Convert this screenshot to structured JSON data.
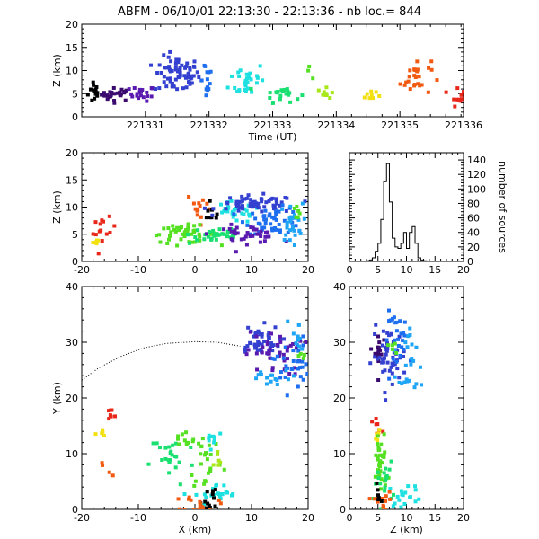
{
  "title": "ABFM - 06/10/01 22:13:30 - 22:13:36 - nb loc.=    844",
  "colors": {
    "palette": [
      "#000000",
      "#3b0a6e",
      "#5a1ab0",
      "#3340d0",
      "#1e6ff0",
      "#1fa5f5",
      "#1de0e0",
      "#19e070",
      "#55e022",
      "#a8e81a",
      "#f2e010",
      "#f4a810",
      "#f25a12",
      "#e8261a"
    ]
  },
  "chart_data": [
    {
      "name": "time-height",
      "type": "scatter",
      "xlabel": "Time (UT)",
      "ylabel": "Z (km)",
      "xlim": [
        221330,
        221336
      ],
      "ylim": [
        0,
        20
      ],
      "xticks": [
        "221331",
        "221332",
        "221333",
        "221334",
        "221335",
        "221336"
      ],
      "yticks": [
        "0",
        "5",
        "10",
        "15",
        "20"
      ],
      "clusters": [
        {
          "x": 221330.2,
          "y": 5.5,
          "sx": 0.05,
          "sy": 1.4,
          "n": 14,
          "c": 0
        },
        {
          "x": 221330.55,
          "y": 4.8,
          "sx": 0.12,
          "sy": 0.7,
          "n": 24,
          "c": 1
        },
        {
          "x": 221330.95,
          "y": 5.0,
          "sx": 0.1,
          "sy": 0.8,
          "n": 20,
          "c": 2
        },
        {
          "x": 221331.5,
          "y": 9.0,
          "sx": 0.18,
          "sy": 2.0,
          "n": 70,
          "c": 3
        },
        {
          "x": 221331.95,
          "y": 8.5,
          "sx": 0.06,
          "sy": 2.3,
          "n": 14,
          "c": 4
        },
        {
          "x": 221332.6,
          "y": 8.0,
          "sx": 0.14,
          "sy": 2.0,
          "n": 30,
          "c": 6
        },
        {
          "x": 221333.15,
          "y": 5.0,
          "sx": 0.14,
          "sy": 0.9,
          "n": 22,
          "c": 7
        },
        {
          "x": 221333.55,
          "y": 9.5,
          "sx": 0.03,
          "sy": 0.6,
          "n": 3,
          "c": 8
        },
        {
          "x": 221333.85,
          "y": 5.0,
          "sx": 0.07,
          "sy": 0.6,
          "n": 10,
          "c": 9
        },
        {
          "x": 221334.55,
          "y": 4.8,
          "sx": 0.07,
          "sy": 0.8,
          "n": 8,
          "c": 10
        },
        {
          "x": 221335.25,
          "y": 8.5,
          "sx": 0.12,
          "sy": 2.0,
          "n": 26,
          "c": 12
        },
        {
          "x": 221335.9,
          "y": 5.0,
          "sx": 0.06,
          "sy": 1.3,
          "n": 10,
          "c": 13
        }
      ]
    },
    {
      "name": "x-z",
      "type": "scatter",
      "xlabel": "",
      "ylabel": "Z (km)",
      "xlim": [
        -20,
        20
      ],
      "ylim": [
        0,
        20
      ],
      "xticks": [
        "-20",
        "-10",
        "0",
        "10",
        "20"
      ],
      "yticks": [
        "0",
        "5",
        "10",
        "15",
        "20"
      ],
      "clusters": [
        {
          "x": -16,
          "y": 5.5,
          "sx": 1.0,
          "sy": 1.2,
          "n": 14,
          "c": 13
        },
        {
          "x": -17.5,
          "y": 3.5,
          "sx": 0.5,
          "sy": 0.5,
          "n": 5,
          "c": 10
        },
        {
          "x": 1,
          "y": 10.0,
          "sx": 1.2,
          "sy": 1.5,
          "n": 14,
          "c": 12
        },
        {
          "x": -2,
          "y": 5.0,
          "sx": 3.0,
          "sy": 0.8,
          "n": 45,
          "c": 8
        },
        {
          "x": 4,
          "y": 5.0,
          "sx": 2.5,
          "sy": 0.9,
          "n": 35,
          "c": 7
        },
        {
          "x": 3,
          "y": 8.5,
          "sx": 0.8,
          "sy": 0.8,
          "n": 8,
          "c": 0
        },
        {
          "x": 7,
          "y": 9.0,
          "sx": 2.5,
          "sy": 1.0,
          "n": 28,
          "c": 6
        },
        {
          "x": 11,
          "y": 10.5,
          "sx": 3.5,
          "sy": 0.8,
          "n": 60,
          "c": 3
        },
        {
          "x": 14,
          "y": 7.5,
          "sx": 2.5,
          "sy": 1.2,
          "n": 50,
          "c": 4
        },
        {
          "x": 9,
          "y": 5.0,
          "sx": 3.0,
          "sy": 0.8,
          "n": 40,
          "c": 2
        },
        {
          "x": 17,
          "y": 7.0,
          "sx": 1.0,
          "sy": 1.8,
          "n": 25,
          "c": 5
        },
        {
          "x": 18,
          "y": 9.0,
          "sx": 0.4,
          "sy": 0.8,
          "n": 6,
          "c": 8
        }
      ]
    },
    {
      "name": "source-histogram",
      "type": "bar",
      "xlabel": "",
      "ylabel": "number of sources",
      "xlim": [
        0,
        20
      ],
      "ylim": [
        0,
        150
      ],
      "xticks": [
        "0",
        "5",
        "10",
        "15",
        "20"
      ],
      "yticks": [
        "0",
        "20",
        "40",
        "60",
        "80",
        "100",
        "120",
        "140"
      ],
      "bin_width": 0.5,
      "bin_start": 0,
      "values": [
        0,
        0,
        0,
        0,
        0,
        0,
        1,
        2,
        5,
        14,
        25,
        58,
        110,
        135,
        82,
        32,
        20,
        18,
        25,
        40,
        18,
        40,
        48,
        25,
        5,
        2,
        1,
        0,
        0,
        0,
        0,
        0,
        0,
        0,
        0,
        0,
        0,
        0,
        0,
        0
      ]
    },
    {
      "name": "x-y",
      "type": "scatter",
      "xlabel": "X (km)",
      "ylabel": "Y (km)",
      "xlim": [
        -20,
        20
      ],
      "ylim": [
        0,
        40
      ],
      "xticks": [
        "-20",
        "-10",
        "0",
        "10",
        "20"
      ],
      "yticks": [
        "0",
        "10",
        "20",
        "30",
        "40"
      ],
      "clusters": [
        {
          "x": -15,
          "y": 16.5,
          "sx": 0.6,
          "sy": 0.8,
          "n": 7,
          "c": 13
        },
        {
          "x": -16.5,
          "y": 13.5,
          "sx": 0.5,
          "sy": 0.8,
          "n": 5,
          "c": 10
        },
        {
          "x": -16,
          "y": 7.0,
          "sx": 0.8,
          "sy": 1.0,
          "n": 4,
          "c": 12
        },
        {
          "x": -4,
          "y": 9.0,
          "sx": 2.0,
          "sy": 2.5,
          "n": 25,
          "c": 7
        },
        {
          "x": -2,
          "y": 12.5,
          "sx": 1.0,
          "sy": 1.0,
          "n": 10,
          "c": 8
        },
        {
          "x": 2,
          "y": 9.0,
          "sx": 1.5,
          "sy": 3.0,
          "n": 25,
          "c": 8
        },
        {
          "x": 3,
          "y": 13.0,
          "sx": 1.0,
          "sy": 0.8,
          "n": 10,
          "c": 6
        },
        {
          "x": 4,
          "y": 2.5,
          "sx": 2.0,
          "sy": 1.0,
          "n": 22,
          "c": 6
        },
        {
          "x": 2.5,
          "y": 2.0,
          "sx": 0.7,
          "sy": 1.5,
          "n": 12,
          "c": 0
        },
        {
          "x": 1,
          "y": 1.0,
          "sx": 1.5,
          "sy": 0.8,
          "n": 18,
          "c": 12
        },
        {
          "x": 4,
          "y": 9.5,
          "sx": 0.5,
          "sy": 0.8,
          "n": 6,
          "c": 9
        },
        {
          "x": 11,
          "y": 30.0,
          "sx": 2.0,
          "sy": 1.5,
          "n": 45,
          "c": 3
        },
        {
          "x": 14,
          "y": 28.0,
          "sx": 2.5,
          "sy": 2.0,
          "n": 40,
          "c": 2
        },
        {
          "x": 17,
          "y": 26.0,
          "sx": 1.5,
          "sy": 2.5,
          "n": 30,
          "c": 4
        },
        {
          "x": 18,
          "y": 31.0,
          "sx": 0.8,
          "sy": 2.0,
          "n": 12,
          "c": 5
        },
        {
          "x": 14,
          "y": 23.5,
          "sx": 2.5,
          "sy": 0.7,
          "n": 15,
          "c": 5
        },
        {
          "x": 19,
          "y": 27.5,
          "sx": 0.3,
          "sy": 0.5,
          "n": 4,
          "c": 8
        }
      ],
      "outline_path": [
        [
          -20,
          23.2
        ],
        [
          -17,
          25.4
        ],
        [
          -13,
          27.5
        ],
        [
          -9,
          29.0
        ],
        [
          -5,
          29.8
        ],
        [
          0,
          30.1
        ],
        [
          4,
          30.0
        ],
        [
          8,
          29.3
        ]
      ]
    },
    {
      "name": "z-y",
      "type": "scatter",
      "xlabel": "Z (km)",
      "ylabel": "",
      "xlim": [
        0,
        20
      ],
      "ylim": [
        0,
        40
      ],
      "xticks": [
        "0",
        "5",
        "10",
        "15",
        "20"
      ],
      "yticks": [
        "0",
        "10",
        "20",
        "30",
        "40"
      ],
      "clusters": [
        {
          "x": 5,
          "y": 14.0,
          "sx": 0.5,
          "sy": 1.2,
          "n": 8,
          "c": 13
        },
        {
          "x": 5,
          "y": 12.5,
          "sx": 0.3,
          "sy": 1.0,
          "n": 5,
          "c": 10
        },
        {
          "x": 5.5,
          "y": 8.5,
          "sx": 0.6,
          "sy": 3.0,
          "n": 35,
          "c": 8
        },
        {
          "x": 6,
          "y": 4.5,
          "sx": 0.8,
          "sy": 2.0,
          "n": 18,
          "c": 7
        },
        {
          "x": 10,
          "y": 2.5,
          "sx": 1.5,
          "sy": 1.0,
          "n": 18,
          "c": 6
        },
        {
          "x": 5.5,
          "y": 1.5,
          "sx": 1.0,
          "sy": 1.0,
          "n": 15,
          "c": 12
        },
        {
          "x": 5,
          "y": 2.5,
          "sx": 0.3,
          "sy": 1.0,
          "n": 6,
          "c": 0
        },
        {
          "x": 5,
          "y": 28.0,
          "sx": 0.4,
          "sy": 2.0,
          "n": 15,
          "c": 1
        },
        {
          "x": 7,
          "y": 27.5,
          "sx": 1.5,
          "sy": 2.5,
          "n": 50,
          "c": 3
        },
        {
          "x": 9,
          "y": 30.5,
          "sx": 1.5,
          "sy": 2.5,
          "n": 25,
          "c": 4
        },
        {
          "x": 11,
          "y": 28.0,
          "sx": 0.8,
          "sy": 3.0,
          "n": 15,
          "c": 5
        },
        {
          "x": 10,
          "y": 23.0,
          "sx": 1.0,
          "sy": 0.6,
          "n": 8,
          "c": 5
        },
        {
          "x": 7.5,
          "y": 28.5,
          "sx": 0.4,
          "sy": 1.0,
          "n": 5,
          "c": 8
        }
      ]
    }
  ]
}
